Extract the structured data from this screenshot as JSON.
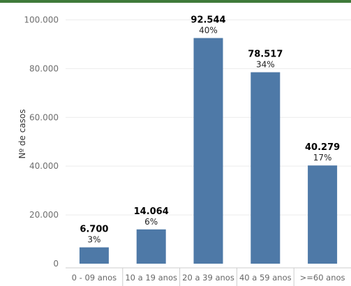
{
  "colors": {
    "top_border": "#3f7a3a",
    "bar": "#4e79a7",
    "grid": "#ececec",
    "axis": "#cccccc"
  },
  "chart_data": {
    "type": "bar",
    "title": "",
    "xlabel": "",
    "ylabel": "Nº de casos",
    "categories": [
      "0 - 09 anos",
      "10 a 19 anos",
      "20 a 39 anos",
      "40 a 59 anos",
      ">=60 anos"
    ],
    "values": [
      6700,
      14064,
      92544,
      78517,
      40279
    ],
    "value_labels": [
      "6.700",
      "14.064",
      "92.544",
      "78.517",
      "40.279"
    ],
    "percent_labels": [
      "3%",
      "6%",
      "40%",
      "34%",
      "17%"
    ],
    "ylim": [
      0,
      107000
    ],
    "yticks": [
      0,
      20000,
      40000,
      60000,
      80000,
      100000
    ],
    "ytick_labels": [
      "0",
      "20.000",
      "40.000",
      "60.000",
      "80.000",
      "100.000"
    ],
    "grid": true,
    "legend": "none"
  }
}
